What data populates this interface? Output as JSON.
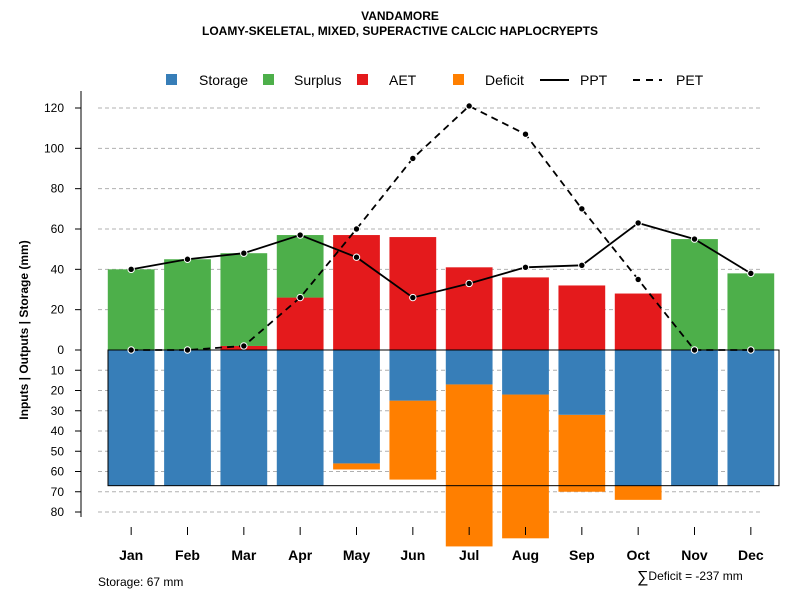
{
  "title": {
    "line1": "VANDAMORE",
    "line2": "LOAMY-SKELETAL, MIXED, SUPERACTIVE CALCIC HAPLOCRYEPTS"
  },
  "chart_data": {
    "type": "bar",
    "ylabel": "Inputs | Outputs | Storage     (mm)",
    "upper_ylim": [
      0,
      120
    ],
    "upper_ticks": [
      0,
      20,
      40,
      60,
      80,
      100,
      120
    ],
    "lower_ylim": [
      0,
      80
    ],
    "lower_ticks": [
      10,
      20,
      30,
      40,
      50,
      60,
      70,
      80
    ],
    "grid": true,
    "legend_position": "top",
    "categories": [
      "Jan",
      "Feb",
      "Mar",
      "Apr",
      "May",
      "Jun",
      "Jul",
      "Aug",
      "Sep",
      "Oct",
      "Nov",
      "Dec"
    ],
    "series": [
      {
        "name": "Storage",
        "color": "#377EB8",
        "values": [
          67,
          67,
          67,
          67,
          56,
          25,
          17,
          22,
          32,
          67,
          67,
          67
        ]
      },
      {
        "name": "Surplus",
        "color": "#4DAF4A",
        "values": [
          40,
          45,
          46,
          31,
          0,
          0,
          0,
          0,
          0,
          0,
          55,
          38
        ]
      },
      {
        "name": "AET",
        "color": "#E41A1C",
        "values": [
          0,
          0,
          2,
          26,
          57,
          56,
          41,
          36,
          32,
          28,
          0,
          0
        ]
      },
      {
        "name": "Deficit",
        "color": "#FF7F00",
        "values": [
          0,
          0,
          0,
          0,
          3,
          39,
          80,
          71,
          38,
          7,
          0,
          0
        ]
      },
      {
        "name": "PPT",
        "color": "#000000",
        "style": "solid",
        "values": [
          40,
          45,
          48,
          57,
          46,
          26,
          33,
          41,
          42,
          63,
          55,
          38
        ]
      },
      {
        "name": "PET",
        "color": "#000000",
        "style": "dashed",
        "values": [
          0,
          0,
          2,
          26,
          60,
          95,
          121,
          107,
          70,
          35,
          0,
          0
        ]
      }
    ],
    "storage_capacity": 67
  },
  "footer": {
    "storage_note": "Storage: 67 mm",
    "deficit_symbol": "∑",
    "deficit_note": "Deficit = -237 mm"
  }
}
